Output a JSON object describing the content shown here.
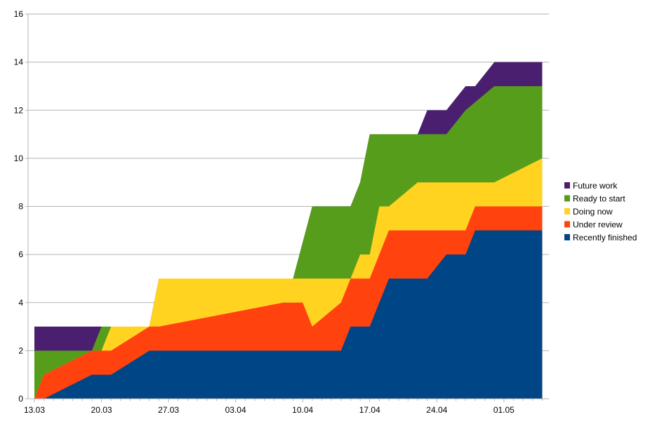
{
  "chart_data": {
    "type": "area",
    "stacked": true,
    "grid": true,
    "legend_position": "right",
    "ylim": [
      0,
      16
    ],
    "y_ticks": [
      "0",
      "2",
      "4",
      "6",
      "8",
      "10",
      "12",
      "14",
      "16"
    ],
    "x_tick_labels": [
      "13.03",
      "20.03",
      "27.03",
      "03.04",
      "10.04",
      "17.04",
      "24.04",
      "01.05"
    ],
    "x_tick_days": [
      0,
      7,
      14,
      21,
      28,
      35,
      42,
      49
    ],
    "x_range_days": [
      0,
      53
    ],
    "series": [
      {
        "name": "Recently finished",
        "color": "#004586",
        "points": [
          [
            0,
            0
          ],
          [
            1,
            0
          ],
          [
            6,
            1
          ],
          [
            8,
            1
          ],
          [
            12,
            2
          ],
          [
            32,
            2
          ],
          [
            33,
            3
          ],
          [
            35,
            3
          ],
          [
            37,
            5
          ],
          [
            41,
            5
          ],
          [
            43,
            6
          ],
          [
            45,
            6
          ],
          [
            46,
            7
          ],
          [
            53,
            7
          ]
        ]
      },
      {
        "name": "Under review",
        "color": "#ff420e",
        "points": [
          [
            0,
            0
          ],
          [
            1,
            1
          ],
          [
            6,
            2
          ],
          [
            8,
            2
          ],
          [
            12,
            3
          ],
          [
            13,
            3
          ],
          [
            26,
            4
          ],
          [
            28,
            4
          ],
          [
            29,
            3
          ],
          [
            32,
            4
          ],
          [
            33,
            5
          ],
          [
            35,
            5
          ],
          [
            37,
            7
          ],
          [
            45,
            7
          ],
          [
            46,
            8
          ],
          [
            53,
            8
          ]
        ]
      },
      {
        "name": "Doing now",
        "color": "#ffd320",
        "points": [
          [
            0,
            0
          ],
          [
            1,
            1
          ],
          [
            6,
            2
          ],
          [
            7,
            2
          ],
          [
            8,
            3
          ],
          [
            12,
            3
          ],
          [
            13,
            5
          ],
          [
            33,
            5
          ],
          [
            34,
            6
          ],
          [
            35,
            6
          ],
          [
            36,
            8
          ],
          [
            37,
            8
          ],
          [
            40,
            9
          ],
          [
            48,
            9
          ],
          [
            53,
            10
          ]
        ]
      },
      {
        "name": "Ready to start",
        "color": "#579d1c",
        "points": [
          [
            0,
            2
          ],
          [
            6,
            2
          ],
          [
            7,
            3
          ],
          [
            12,
            3
          ],
          [
            13,
            5
          ],
          [
            27,
            5
          ],
          [
            29,
            8
          ],
          [
            33,
            8
          ],
          [
            34,
            9
          ],
          [
            35,
            11
          ],
          [
            43,
            11
          ],
          [
            45,
            12
          ],
          [
            48,
            13
          ],
          [
            53,
            13
          ]
        ]
      },
      {
        "name": "Future work",
        "color": "#4b1f6f",
        "points": [
          [
            0,
            3
          ],
          [
            7,
            3
          ],
          [
            12,
            3
          ],
          [
            13,
            5
          ],
          [
            27,
            5
          ],
          [
            29,
            8
          ],
          [
            33,
            8
          ],
          [
            34,
            9
          ],
          [
            35,
            11
          ],
          [
            40,
            11
          ],
          [
            41,
            12
          ],
          [
            43,
            12
          ],
          [
            45,
            13
          ],
          [
            46,
            13
          ],
          [
            48,
            14
          ],
          [
            53,
            14
          ]
        ]
      }
    ],
    "legend_order": [
      "Future work",
      "Ready to start",
      "Doing now",
      "Under review",
      "Recently finished"
    ]
  }
}
